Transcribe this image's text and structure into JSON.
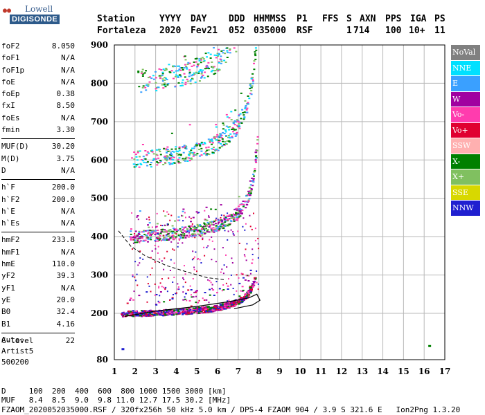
{
  "logo": {
    "line1": "Lowell",
    "line2": "DIGISONDE"
  },
  "header": {
    "labels": [
      "Station",
      "YYYY",
      "DAY",
      "DDD",
      "HHMMSS",
      "P1",
      "FFS",
      "S",
      "AXN",
      "PPS",
      "IGA",
      "PS"
    ],
    "values": [
      "Fortaleza",
      "2020",
      "Fev21",
      "052",
      "035000",
      "RSF",
      "",
      "1",
      "714",
      "100",
      "10+",
      "11"
    ]
  },
  "params": [
    {
      "label": "foF2",
      "value": "8.050"
    },
    {
      "label": "foF1",
      "value": "N/A"
    },
    {
      "label": "foF1p",
      "value": "N/A"
    },
    {
      "label": "foE",
      "value": "N/A"
    },
    {
      "label": "foEp",
      "value": "0.38"
    },
    {
      "label": "fxI",
      "value": "8.50"
    },
    {
      "label": "foEs",
      "value": "N/A"
    },
    {
      "label": "fmin",
      "value": "3.30"
    },
    {
      "label": "MUF(D)",
      "value": "30.20"
    },
    {
      "label": "M(D)",
      "value": "3.75"
    },
    {
      "label": "D",
      "value": "N/A"
    },
    {
      "label": "h`F",
      "value": "200.0"
    },
    {
      "label": "h`F2",
      "value": "200.0"
    },
    {
      "label": "h`E",
      "value": "N/A"
    },
    {
      "label": "h`Es",
      "value": "N/A"
    },
    {
      "label": "hmF2",
      "value": "233.8"
    },
    {
      "label": "hmF1",
      "value": "N/A"
    },
    {
      "label": "hmE",
      "value": "110.0"
    },
    {
      "label": "yF2",
      "value": "39.3"
    },
    {
      "label": "yF1",
      "value": "N/A"
    },
    {
      "label": "yE",
      "value": "20.0"
    },
    {
      "label": "B0",
      "value": "32.4"
    },
    {
      "label": "B1",
      "value": "4.16"
    },
    {
      "label": "C-level",
      "value": "22"
    }
  ],
  "auto": [
    "Auto:",
    "Artist5",
    "500200"
  ],
  "legend": [
    {
      "label": "NoVal",
      "color": "#808080",
      "text": "#ffffff"
    },
    {
      "label": "NNE",
      "color": "#00e0ff",
      "text": "#ffffff"
    },
    {
      "label": "E",
      "color": "#3aa0ff",
      "text": "#ffffff"
    },
    {
      "label": "W",
      "color": "#a000a0",
      "text": "#ffffff"
    },
    {
      "label": "Vo-",
      "color": "#ff3cae",
      "text": "#ffffff"
    },
    {
      "label": "Vo+",
      "color": "#e00030",
      "text": "#ffffff"
    },
    {
      "label": "SSW",
      "color": "#ffb0b0",
      "text": "#ffffff"
    },
    {
      "label": "X-",
      "color": "#008000",
      "text": "#ffffff"
    },
    {
      "label": "X+",
      "color": "#80c060",
      "text": "#ffffff"
    },
    {
      "label": "SSE",
      "color": "#d8d800",
      "text": "#ffffff"
    },
    {
      "label": "NNW",
      "color": "#2020d0",
      "text": "#ffffff"
    }
  ],
  "chart_data": {
    "type": "scatter",
    "xlim": [
      1,
      17
    ],
    "ylim": [
      80,
      900
    ],
    "x_ticks": [
      "1",
      "2",
      "3",
      "4",
      "5",
      "6",
      "7",
      "8",
      "9",
      "10",
      "11",
      "12",
      "13",
      "14",
      "15",
      "16",
      "17"
    ],
    "y_ticks": [
      "80",
      "200",
      "300",
      "400",
      "500",
      "600",
      "700",
      "800",
      "900"
    ],
    "grid": true,
    "traces": [
      {
        "name": "1st hop",
        "h0": 200,
        "fc": 8.05,
        "k": 0.55,
        "f_min": 1.3,
        "f_max": 7.8,
        "colors": [
          "#ff3cae",
          "#a000a0",
          "#008000",
          "#e00030",
          "#2020d0"
        ],
        "density": 900
      },
      {
        "name": "2nd hop",
        "h0": 400,
        "fc": 8.05,
        "k": 1.1,
        "f_min": 1.7,
        "f_max": 7.9,
        "colors": [
          "#ff3cae",
          "#a000a0",
          "#008000",
          "#3aa0ff",
          "#80c060"
        ],
        "density": 500
      },
      {
        "name": "3rd hop",
        "h0": 600,
        "fc": 8.05,
        "k": 1.6,
        "f_min": 1.8,
        "f_max": 8.0,
        "colors": [
          "#3aa0ff",
          "#ff3cae",
          "#008000",
          "#80c060",
          "#00e0ff"
        ],
        "density": 380
      },
      {
        "name": "4th hop",
        "h0": 800,
        "fc": 8.05,
        "k": 2.1,
        "f_min": 2.0,
        "f_max": 7.0,
        "colors": [
          "#3aa0ff",
          "#ff3cae",
          "#008000",
          "#80c060",
          "#00e0ff"
        ],
        "density": 260
      }
    ],
    "profile_curve": {
      "f": [
        1.5,
        3,
        5,
        6.5,
        7.5,
        7.9,
        8.05,
        7.7,
        6.8
      ],
      "h": [
        192,
        206,
        218,
        230,
        240,
        250,
        234,
        222,
        212
      ]
    },
    "dashed_curve": {
      "f": [
        1.2,
        1.8,
        2.5,
        3.5,
        4.5,
        5.5,
        6.3
      ],
      "h": [
        415,
        375,
        350,
        325,
        308,
        293,
        288
      ]
    },
    "isolated_points": [
      {
        "f": 1.35,
        "h": 110,
        "color": "#2020d0"
      },
      {
        "f": 16.2,
        "h": 118,
        "color": "#008000"
      }
    ]
  },
  "footer": {
    "d_label": "D",
    "d_values": "100  200  400  600  800 1000 1500 3000 [km]",
    "muf_label": "MUF",
    "muf_values": "8.4  8.5  9.0  9.8 11.0 12.7 17.5 30.2 [MHz]",
    "file_line": "FZAOM_2020052035000.RSF / 320fx256h 50 kHz 5.0 km / DPS-4 FZAOM 904 / 3.9 S 321.6 E   Ion2Png 1.3.20"
  }
}
